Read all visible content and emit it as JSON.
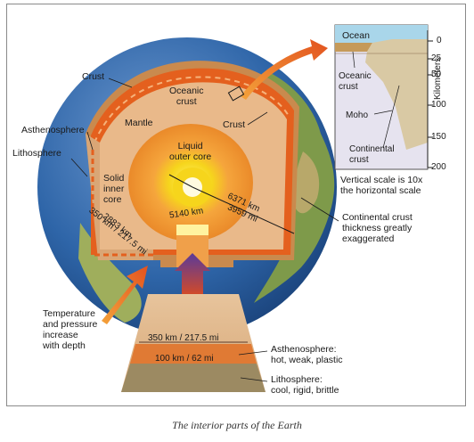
{
  "colors": {
    "mantle": "#e9b98a",
    "crust": "#c98a4e",
    "asthenosphere": "#e4601e",
    "outer_core": "#f59b3a",
    "inner_core": "#f6d51c",
    "ocean": "#2f6fb0",
    "land": "#7e9a4a",
    "arrow": "#e2521f",
    "inset_bg": "#e6e3ef",
    "inset_ocean": "#a9d6ea"
  },
  "labels": {
    "crust_top": "Crust",
    "oceanic_crust": "Oceanic\ncrust",
    "mantle": "Mantle",
    "crust_right": "Crust",
    "asthenosphere": "Asthenosphere",
    "lithosphere": "Lithosphere",
    "liquid_outer_core": "Liquid\nouter core",
    "solid_inner_core": "Solid\ninner\ncore",
    "radius_earth": "6371 km",
    "radius_mi": "3959 mi",
    "core_radius": "5140 km",
    "depth_2883": "2883 km",
    "depth_350_km_mi": "350 km / 217.5 mi",
    "continental_note": "Continental crust\nthickness greatly\nexaggerated",
    "temperature_note": "Temperature\nand pressure\nincrease\nwith depth",
    "wedge_350": "350 km / 217.5 mi",
    "wedge_100": "100 km / 62 mi",
    "asthenosphere_desc": "Asthenosphere:\nhot, weak, plastic",
    "lithosphere_desc": "Lithosphere:\ncool, rigid, brittle",
    "caption": "The interior parts of the Earth"
  },
  "inset": {
    "ocean": "Ocean",
    "oceanic_crust": "Oceanic\ncrust",
    "moho": "Moho",
    "continental_crust": "Continental\ncrust",
    "axis_label": "Kilometers",
    "ticks": [
      "0",
      "25",
      "50",
      "100",
      "150",
      "200"
    ],
    "scale_note": "Vertical scale is 10x\nthe horizontal scale"
  }
}
